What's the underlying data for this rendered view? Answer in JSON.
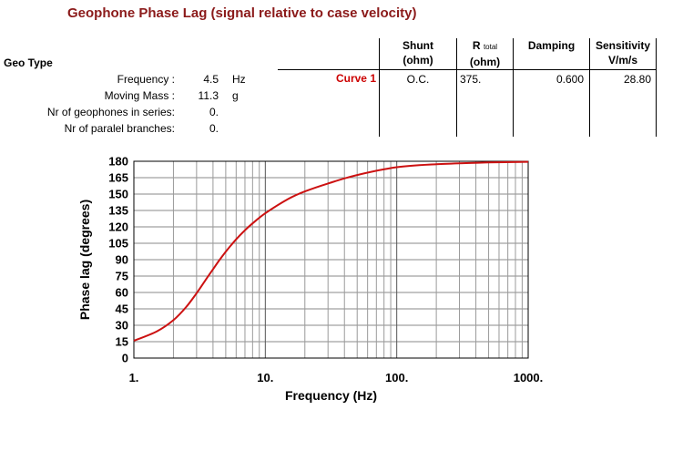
{
  "title": "Geophone Phase Lag (signal relative to case velocity)",
  "geo_type_label": "Geo Type",
  "parameters": [
    {
      "label": "Frequency :",
      "value": "4.5",
      "unit": "Hz"
    },
    {
      "label": "Moving Mass :",
      "value": "11.3",
      "unit": "g"
    },
    {
      "label": "Nr of geophones in series:",
      "value": "0.",
      "unit": ""
    },
    {
      "label": "Nr of paralel branches:",
      "value": "0.",
      "unit": ""
    }
  ],
  "table": {
    "headers": {
      "shunt": "Shunt",
      "shunt_unit": "(ohm)",
      "rtotal_r": "R",
      "rtotal_sub": "total",
      "rtotal_unit": "(ohm)",
      "damping": "Damping",
      "sensitivity": "Sensitivity",
      "sensitivity_unit": "V/m/s"
    },
    "row": {
      "label": "Curve 1",
      "shunt": "O.C.",
      "rtotal": "375.",
      "damping": "0.600",
      "sensitivity": "28.80"
    }
  },
  "colors": {
    "curve": "#cc1111",
    "title": "#8b1a1a",
    "label": "#cc0000"
  },
  "chart_data": {
    "type": "line",
    "xlabel": "Frequency (Hz)",
    "ylabel": "Phase lag (degrees)",
    "x_scale": "log",
    "xlim": [
      1,
      1000
    ],
    "ylim": [
      0,
      180
    ],
    "x_ticks": [
      1,
      10,
      100,
      1000
    ],
    "x_tick_labels": [
      "1.",
      "10.",
      "100.",
      "1000."
    ],
    "y_ticks": [
      0,
      15,
      30,
      45,
      60,
      75,
      90,
      105,
      120,
      135,
      150,
      165,
      180
    ],
    "grid": true,
    "series": [
      {
        "color": "#cc1111",
        "x": [
          1,
          1.5,
          2,
          2.5,
          3,
          3.5,
          4,
          4.5,
          5,
          6,
          7,
          8,
          10,
          15,
          20,
          30,
          50,
          100,
          200,
          500,
          1000
        ],
        "y": [
          15.8,
          24.5,
          34.7,
          46.7,
          59.3,
          71.1,
          81.2,
          90,
          97.3,
          108.6,
          116.9,
          123.2,
          132.4,
          145.6,
          152.4,
          159.7,
          167.4,
          174.6,
          177.3,
          178.9,
          179.5
        ]
      }
    ]
  }
}
